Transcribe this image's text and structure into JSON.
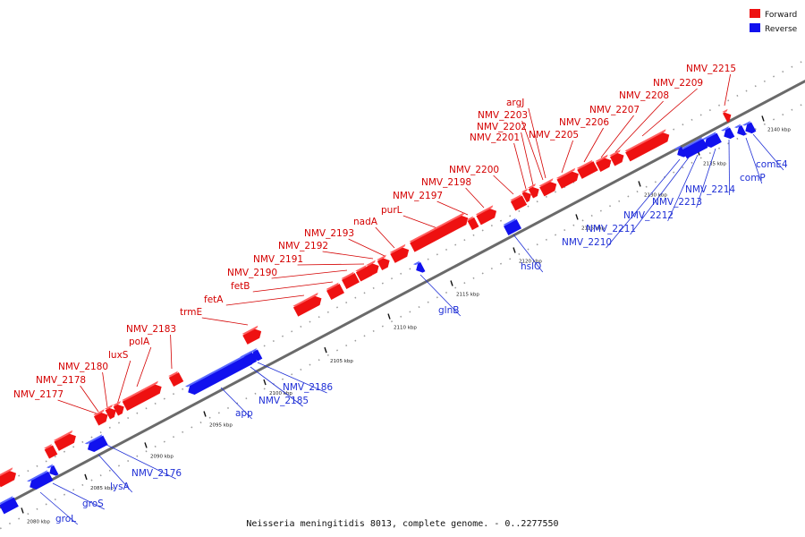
{
  "caption": "Neisseria meningitidis 8013, complete genome. - 0..2277550",
  "legend": {
    "forward": {
      "label": "Forward",
      "color": "#ee1111"
    },
    "reverse": {
      "label": "Reverse",
      "color": "#1111ee"
    }
  },
  "ticks": [
    "2080 kbp",
    "2085 kbp",
    "2090 kbp",
    "2095 kbp",
    "2100 kbp",
    "2105 kbp",
    "2110 kbp",
    "2115 kbp",
    "2120 kbp",
    "2125 kbp",
    "2130 kbp",
    "2135 kbp",
    "2140 kbp"
  ],
  "forward_genes": [
    "NMV_2177",
    "NMV_2178",
    "NMV_2180",
    "luxS",
    "polA",
    "NMV_2183",
    "trmE",
    "fetA",
    "fetB",
    "NMV_2190",
    "NMV_2191",
    "NMV_2192",
    "NMV_2193",
    "nadA",
    "purL",
    "NMV_2197",
    "NMV_2198",
    "NMV_2200",
    "NMV_2201",
    "NMV_2202",
    "NMV_2203",
    "argJ",
    "NMV_2205",
    "NMV_2206",
    "NMV_2207",
    "NMV_2208",
    "NMV_2209",
    "NMV_2215"
  ],
  "reverse_genes": [
    "groL",
    "groS",
    "lysA",
    "NMV_2176",
    "app",
    "NMV_2185",
    "NMV_2186",
    "glnB",
    "hslO",
    "NMV_2210",
    "NMV_2211",
    "NMV_2212",
    "NMV_2213",
    "NMV_2214",
    "comP",
    "comE4"
  ]
}
